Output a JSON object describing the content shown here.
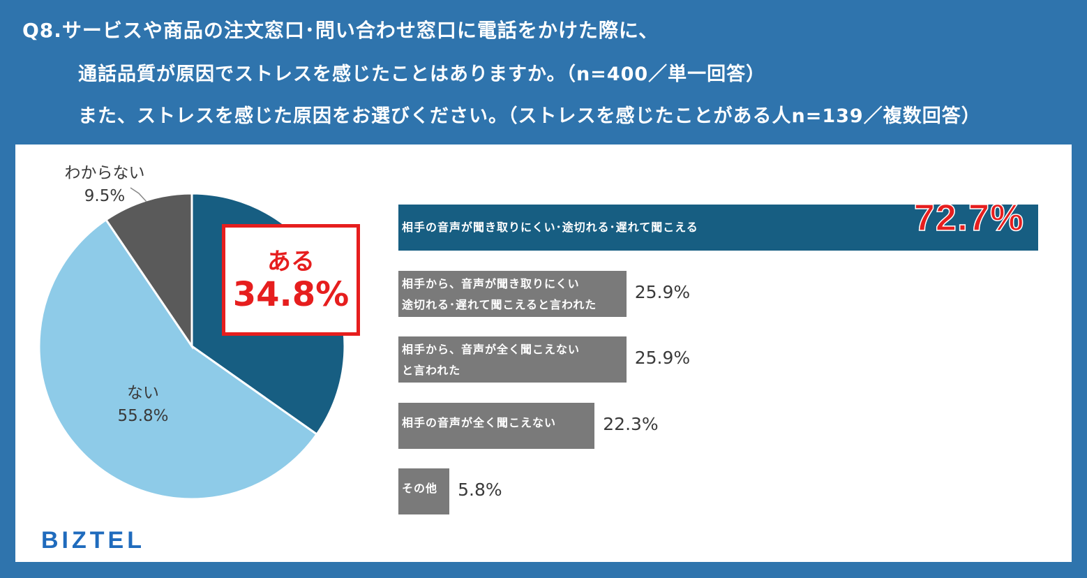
{
  "title": {
    "line1": "Q8.サービスや商品の注文窓口･問い合わせ窓口に電話をかけた際に、",
    "line2": "通話品質が原因でストレスを感じたことはありますか。（n=400／単一回答）",
    "line3": "また、ストレスを感じた原因をお選びください。（ストレスを感じたことがある人n=139／複数回答）"
  },
  "logo": "BIZTEL",
  "chart_data": [
    {
      "type": "pie",
      "start_angle_deg": 0,
      "direction": "clockwise",
      "slices": [
        {
          "label": "ある",
          "value": 34.8,
          "value_text": "34.8%",
          "color": "#175e82"
        },
        {
          "label": "ない",
          "value": 55.8,
          "value_text": "55.8%",
          "color": "#8ecbe8"
        },
        {
          "label": "わからない",
          "value": 9.5,
          "value_text": "9.5%",
          "color": "#5a5a5a"
        }
      ]
    },
    {
      "type": "bar",
      "orientation": "horizontal",
      "xlim": [
        0,
        72.7
      ],
      "categories": [
        [
          "相手の音声が聞き取りにくい･途切れる･遅れて聞こえる"
        ],
        [
          "相手から、音声が聞き取りにくい",
          "途切れる･遅れて聞こえると言われた"
        ],
        [
          "相手から、音声が全く聞こえない",
          "と言われた"
        ],
        [
          "相手の音声が全く聞こえない"
        ],
        [
          "その他"
        ]
      ],
      "values": [
        72.7,
        25.9,
        25.9,
        22.3,
        5.8
      ],
      "value_labels": [
        "72.7%",
        "25.9%",
        "25.9%",
        "22.3%",
        "5.8%"
      ],
      "colors": [
        "#175e82",
        "#7a7a7a",
        "#7a7a7a",
        "#7a7a7a",
        "#7a7a7a"
      ]
    }
  ]
}
